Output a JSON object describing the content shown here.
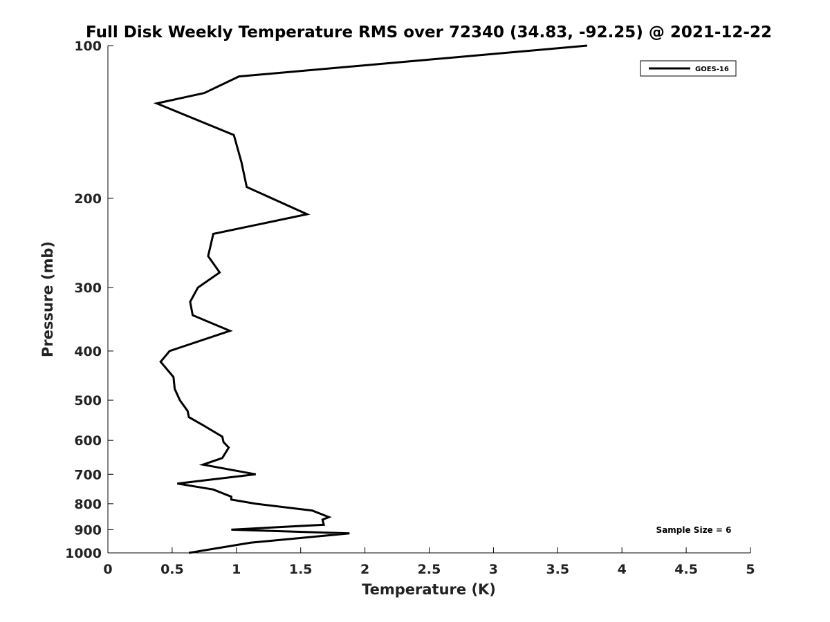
{
  "chart_data": {
    "type": "line",
    "title": "Full Disk Weekly Temperature RMS over 72340 (34.83, -92.25) @ 2021-12-22",
    "xlabel": "Temperature (K)",
    "ylabel": "Pressure (mb)",
    "xlim": [
      0,
      5
    ],
    "ylim": [
      1000,
      100
    ],
    "y_scale": "log",
    "y_reversed": true,
    "grid": false,
    "x_ticks": [
      0,
      0.5,
      1,
      1.5,
      2,
      2.5,
      3,
      3.5,
      4,
      4.5,
      5
    ],
    "x_tick_labels": [
      "0",
      "0.5",
      "1",
      "1.5",
      "2",
      "2.5",
      "3",
      "3.5",
      "4",
      "4.5",
      "5"
    ],
    "y_ticks": [
      100,
      200,
      300,
      400,
      500,
      600,
      700,
      800,
      900,
      1000
    ],
    "y_tick_labels": [
      "100",
      "200",
      "300",
      "400",
      "500",
      "600",
      "700",
      "800",
      "900",
      "1000"
    ],
    "legend_position": "top-right",
    "annotation": "Sample Size = 6",
    "series": [
      {
        "name": "GOES-16",
        "color": "#000000",
        "x": [
          3.73,
          1.02,
          0.75,
          0.38,
          0.98,
          1.04,
          1.08,
          1.55,
          0.82,
          0.78,
          0.87,
          0.7,
          0.64,
          0.66,
          0.95,
          0.48,
          0.41,
          0.51,
          0.52,
          0.56,
          0.62,
          0.63,
          0.74,
          0.89,
          0.9,
          0.94,
          0.89,
          0.74,
          1.15,
          0.54,
          0.82,
          0.96,
          0.96,
          1.15,
          1.59,
          1.72,
          1.67,
          1.68,
          0.96,
          1.88,
          1.11,
          0.63
        ],
        "y": [
          100,
          115,
          124,
          130,
          150,
          170,
          190,
          215,
          235,
          260,
          280,
          300,
          320,
          340,
          365,
          400,
          420,
          450,
          475,
          500,
          525,
          540,
          560,
          590,
          605,
          620,
          650,
          670,
          700,
          730,
          750,
          775,
          785,
          800,
          825,
          850,
          860,
          880,
          900,
          915,
          955,
          1000
        ]
      }
    ]
  }
}
